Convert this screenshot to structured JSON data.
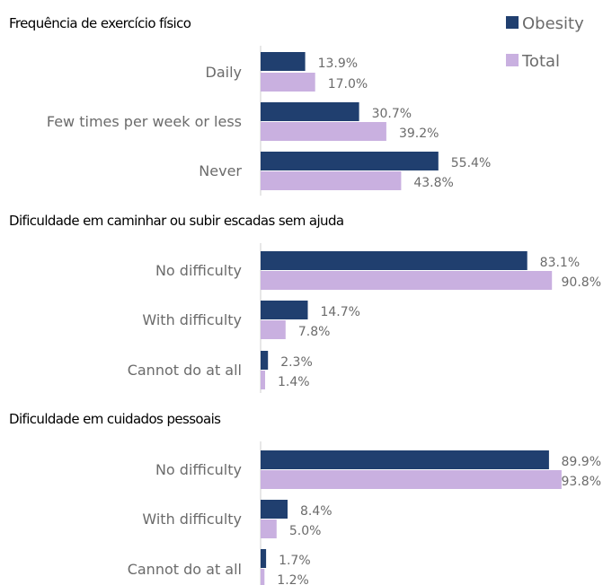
{
  "colors": {
    "obesity": "#203f6f",
    "total": "#c9b0e0",
    "axis": "#cfcfcf",
    "text": "#6b6b6b"
  },
  "legend": [
    {
      "name": "Obesity",
      "color": "#203f6f"
    },
    {
      "name": "Total",
      "color": "#c9b0e0"
    }
  ],
  "chart_data": [
    {
      "type": "bar",
      "orientation": "horizontal",
      "title": "Frequência de exercício físico",
      "categories": [
        "Daily",
        "Few times per week or less",
        "Never"
      ],
      "series": [
        {
          "name": "Obesity",
          "values": [
            13.9,
            30.7,
            55.4
          ],
          "labels": [
            "13.9%",
            "30.7%",
            "55.4%"
          ]
        },
        {
          "name": "Total",
          "values": [
            17.0,
            39.2,
            43.8
          ],
          "labels": [
            "17.0%",
            "39.2%",
            "43.8%"
          ]
        }
      ],
      "unit": "%",
      "legend_position": "top-right"
    },
    {
      "type": "bar",
      "orientation": "horizontal",
      "title": "Dificuldade em caminhar ou subir escadas sem ajuda",
      "categories": [
        "No difficulty",
        "With difficulty",
        "Cannot do at all"
      ],
      "series": [
        {
          "name": "Obesity",
          "values": [
            83.1,
            14.7,
            2.3
          ],
          "labels": [
            "83.1%",
            "14.7%",
            "2.3%"
          ]
        },
        {
          "name": "Total",
          "values": [
            90.8,
            7.8,
            1.4
          ],
          "labels": [
            "90.8%",
            "7.8%",
            "1.4%"
          ]
        }
      ],
      "unit": "%"
    },
    {
      "type": "bar",
      "orientation": "horizontal",
      "title": "Dificuldade em cuidados pessoais",
      "categories": [
        "No difficulty",
        "With difficulty",
        "Cannot do at all"
      ],
      "series": [
        {
          "name": "Obesity",
          "values": [
            89.9,
            8.4,
            1.7
          ],
          "labels": [
            "89.9%",
            "8.4%",
            "1.7%"
          ]
        },
        {
          "name": "Total",
          "values": [
            93.8,
            5.0,
            1.2
          ],
          "labels": [
            "93.8%",
            "5.0%",
            "1.2%"
          ]
        }
      ],
      "unit": "%"
    }
  ]
}
